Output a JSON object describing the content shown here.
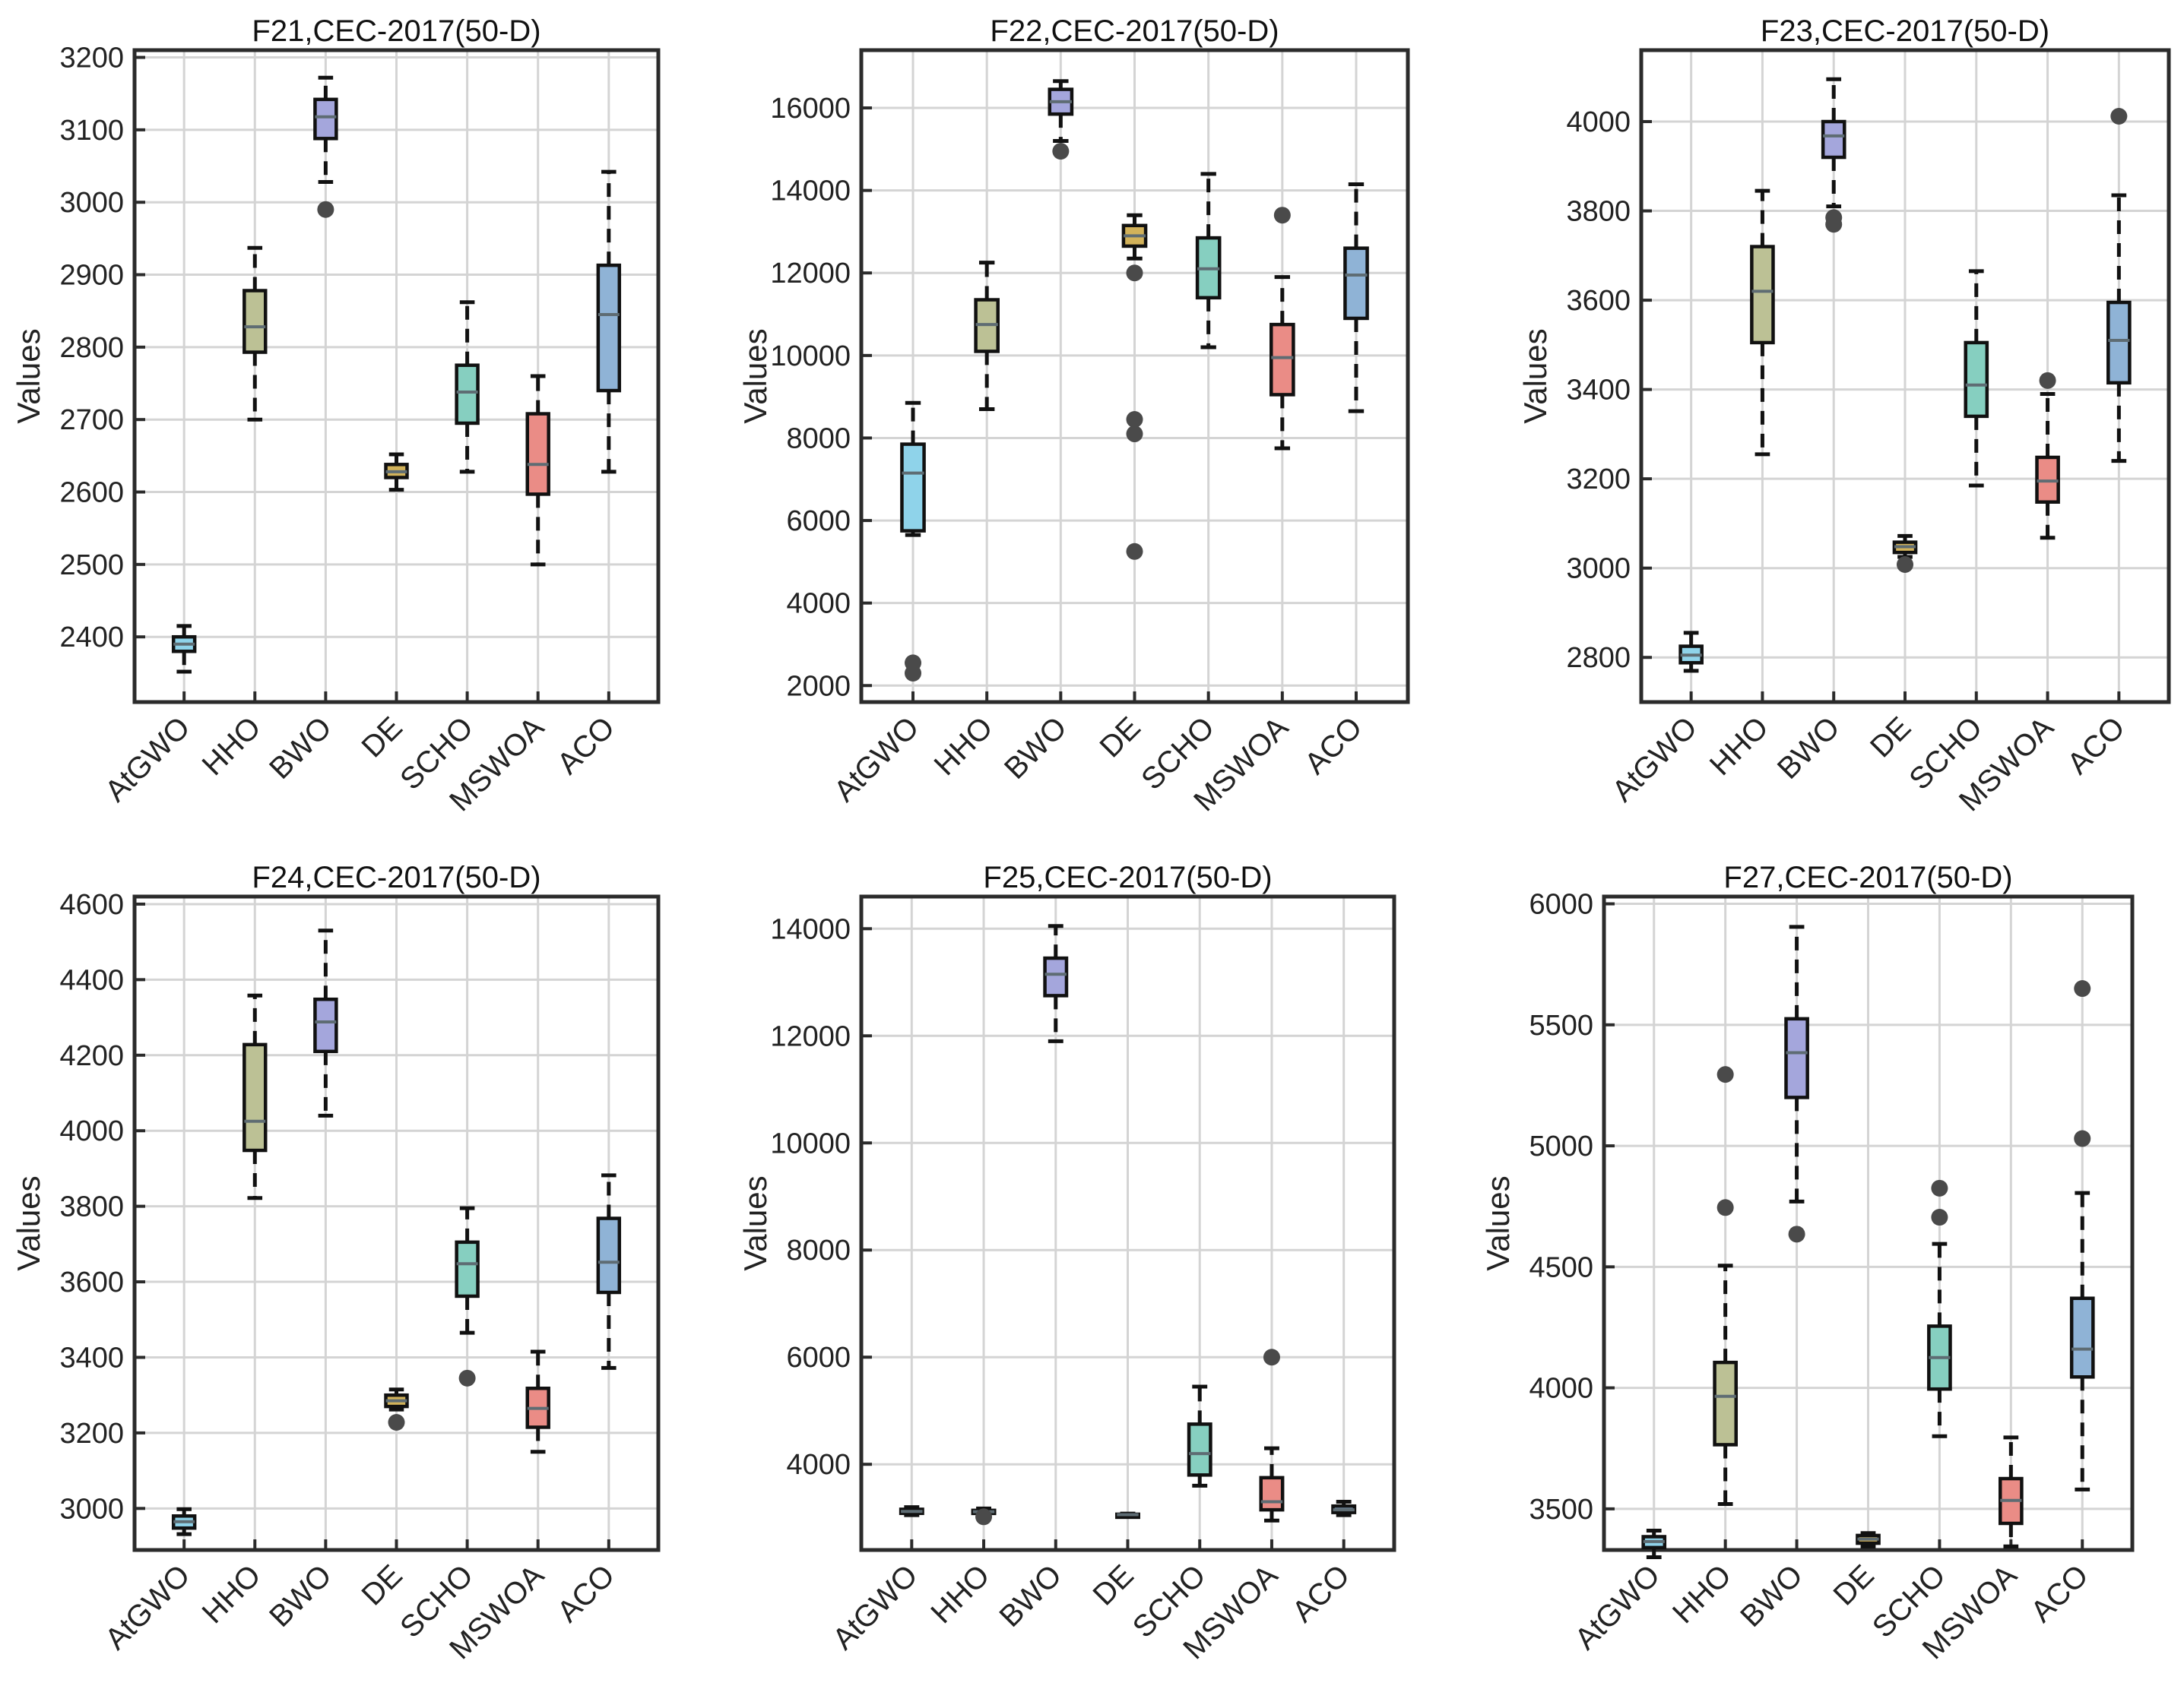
{
  "figure": {
    "colors": {
      "AtGWO": "#8fd3ea",
      "HHO": "#bcc195",
      "BWO": "#a4a6dc",
      "DE": "#d2b25a",
      "SCHO": "#86cfc0",
      "MSWOA": "#ea8c86",
      "ACO": "#8fb3d6"
    },
    "median_color": "#5e6c73",
    "outlier_color": "#4a4a4a"
  },
  "chart_data": [
    {
      "type": "box",
      "title": "F21,CEC-2017(50-D)",
      "ylabel": "Values",
      "ylim": [
        2310,
        3210
      ],
      "yticks": [
        "2400",
        "2500",
        "2600",
        "2700",
        "2800",
        "2900",
        "3000",
        "3100",
        "3200"
      ],
      "categories": [
        "AtGWO",
        "HHO",
        "BWO",
        "DE",
        "SCHO",
        "MSWOA",
        "ACO"
      ],
      "boxes": [
        {
          "name": "AtGWO",
          "whisker_low": 2352,
          "q1": 2380,
          "median": 2390,
          "q3": 2400,
          "whisker_high": 2415,
          "outliers": []
        },
        {
          "name": "HHO",
          "whisker_low": 2700,
          "q1": 2793,
          "median": 2828,
          "q3": 2878,
          "whisker_high": 2937,
          "outliers": []
        },
        {
          "name": "BWO",
          "whisker_low": 3028,
          "q1": 3088,
          "median": 3118,
          "q3": 3142,
          "whisker_high": 3172,
          "outliers": [
            2990
          ]
        },
        {
          "name": "DE",
          "whisker_low": 2603,
          "q1": 2620,
          "median": 2628,
          "q3": 2638,
          "whisker_high": 2652,
          "outliers": []
        },
        {
          "name": "SCHO",
          "whisker_low": 2628,
          "q1": 2695,
          "median": 2738,
          "q3": 2775,
          "whisker_high": 2862,
          "outliers": []
        },
        {
          "name": "MSWOA",
          "whisker_low": 2500,
          "q1": 2597,
          "median": 2638,
          "q3": 2708,
          "whisker_high": 2760,
          "outliers": []
        },
        {
          "name": "ACO",
          "whisker_low": 2628,
          "q1": 2740,
          "median": 2845,
          "q3": 2913,
          "whisker_high": 3042,
          "outliers": []
        }
      ]
    },
    {
      "type": "box",
      "title": "F22,CEC-2017(50-D)",
      "ylabel": "Values",
      "ylim": [
        1600,
        17400
      ],
      "yticks": [
        "2000",
        "4000",
        "6000",
        "8000",
        "10000",
        "12000",
        "14000",
        "16000"
      ],
      "categories": [
        "AtGWO",
        "HHO",
        "BWO",
        "DE",
        "SCHO",
        "MSWOA",
        "ACO"
      ],
      "boxes": [
        {
          "name": "AtGWO",
          "whisker_low": 5650,
          "q1": 5750,
          "median": 7150,
          "q3": 7850,
          "whisker_high": 8850,
          "outliers": [
            2300,
            2550
          ]
        },
        {
          "name": "HHO",
          "whisker_low": 8700,
          "q1": 10100,
          "median": 10750,
          "q3": 11350,
          "whisker_high": 12250,
          "outliers": []
        },
        {
          "name": "BWO",
          "whisker_low": 15200,
          "q1": 15850,
          "median": 16150,
          "q3": 16450,
          "whisker_high": 16650,
          "outliers": [
            14950
          ]
        },
        {
          "name": "DE",
          "whisker_low": 12350,
          "q1": 12650,
          "median": 12900,
          "q3": 13150,
          "whisker_high": 13400,
          "outliers": [
            12000,
            8450,
            8100,
            5250
          ]
        },
        {
          "name": "SCHO",
          "whisker_low": 10200,
          "q1": 11400,
          "median": 12100,
          "q3": 12850,
          "whisker_high": 14400,
          "outliers": []
        },
        {
          "name": "MSWOA",
          "whisker_low": 7750,
          "q1": 9050,
          "median": 9950,
          "q3": 10750,
          "whisker_high": 11900,
          "outliers": [
            13400
          ]
        },
        {
          "name": "ACO",
          "whisker_low": 8650,
          "q1": 10900,
          "median": 11950,
          "q3": 12600,
          "whisker_high": 14150,
          "outliers": []
        }
      ]
    },
    {
      "type": "box",
      "title": "F23,CEC-2017(50-D)",
      "ylabel": "Values",
      "ylim": [
        2700,
        4160
      ],
      "yticks": [
        "2800",
        "3000",
        "3200",
        "3400",
        "3600",
        "3800",
        "4000"
      ],
      "categories": [
        "AtGWO",
        "HHO",
        "BWO",
        "DE",
        "SCHO",
        "MSWOA",
        "ACO"
      ],
      "boxes": [
        {
          "name": "AtGWO",
          "whisker_low": 2770,
          "q1": 2788,
          "median": 2805,
          "q3": 2825,
          "whisker_high": 2855,
          "outliers": []
        },
        {
          "name": "HHO",
          "whisker_low": 3255,
          "q1": 3505,
          "median": 3620,
          "q3": 3720,
          "whisker_high": 3845,
          "outliers": []
        },
        {
          "name": "BWO",
          "whisker_low": 3810,
          "q1": 3920,
          "median": 3968,
          "q3": 4000,
          "whisker_high": 4095,
          "outliers": [
            3770,
            3785
          ]
        },
        {
          "name": "DE",
          "whisker_low": 3025,
          "q1": 3035,
          "median": 3048,
          "q3": 3058,
          "whisker_high": 3072,
          "outliers": [
            3008
          ]
        },
        {
          "name": "SCHO",
          "whisker_low": 3185,
          "q1": 3340,
          "median": 3410,
          "q3": 3505,
          "whisker_high": 3665,
          "outliers": []
        },
        {
          "name": "MSWOA",
          "whisker_low": 3068,
          "q1": 3148,
          "median": 3195,
          "q3": 3248,
          "whisker_high": 3390,
          "outliers": [
            3420
          ]
        },
        {
          "name": "ACO",
          "whisker_low": 3240,
          "q1": 3415,
          "median": 3510,
          "q3": 3595,
          "whisker_high": 3835,
          "outliers": [
            4012
          ]
        }
      ]
    },
    {
      "type": "box",
      "title": "F24,CEC-2017(50-D)",
      "ylabel": "Values",
      "ylim": [
        2890,
        4620
      ],
      "yticks": [
        "3000",
        "3200",
        "3400",
        "3600",
        "3800",
        "4000",
        "4200",
        "4400",
        "4600"
      ],
      "categories": [
        "AtGWO",
        "HHO",
        "BWO",
        "DE",
        "SCHO",
        "MSWOA",
        "ACO"
      ],
      "boxes": [
        {
          "name": "AtGWO",
          "whisker_low": 2932,
          "q1": 2948,
          "median": 2965,
          "q3": 2980,
          "whisker_high": 2998,
          "outliers": []
        },
        {
          "name": "HHO",
          "whisker_low": 3822,
          "q1": 3948,
          "median": 4025,
          "q3": 4228,
          "whisker_high": 4358,
          "outliers": []
        },
        {
          "name": "BWO",
          "whisker_low": 4040,
          "q1": 4210,
          "median": 4288,
          "q3": 4348,
          "whisker_high": 4530,
          "outliers": []
        },
        {
          "name": "DE",
          "whisker_low": 3262,
          "q1": 3270,
          "median": 3285,
          "q3": 3300,
          "whisker_high": 3315,
          "outliers": [
            3228
          ]
        },
        {
          "name": "SCHO",
          "whisker_low": 3465,
          "q1": 3562,
          "median": 3648,
          "q3": 3705,
          "whisker_high": 3795,
          "outliers": [
            3345
          ]
        },
        {
          "name": "MSWOA",
          "whisker_low": 3150,
          "q1": 3215,
          "median": 3265,
          "q3": 3318,
          "whisker_high": 3415,
          "outliers": []
        },
        {
          "name": "ACO",
          "whisker_low": 3372,
          "q1": 3572,
          "median": 3652,
          "q3": 3768,
          "whisker_high": 3882,
          "outliers": []
        }
      ]
    },
    {
      "type": "box",
      "title": "F25,CEC-2017(50-D)",
      "ylabel": "Values",
      "ylim": [
        2400,
        14600
      ],
      "yticks": [
        "4000",
        "6000",
        "8000",
        "10000",
        "12000",
        "14000"
      ],
      "categories": [
        "AtGWO",
        "HHO",
        "BWO",
        "DE",
        "SCHO",
        "MSWOA",
        "ACO"
      ],
      "boxes": [
        {
          "name": "AtGWO",
          "whisker_low": 3050,
          "q1": 3085,
          "median": 3120,
          "q3": 3160,
          "whisker_high": 3200,
          "outliers": []
        },
        {
          "name": "HHO",
          "whisker_low": 3060,
          "q1": 3090,
          "median": 3115,
          "q3": 3140,
          "whisker_high": 3175,
          "outliers": [
            3020
          ]
        },
        {
          "name": "BWO",
          "whisker_low": 11900,
          "q1": 12750,
          "median": 13150,
          "q3": 13450,
          "whisker_high": 14050,
          "outliers": []
        },
        {
          "name": "DE",
          "whisker_low": 3040,
          "q1": 3050,
          "median": 3060,
          "q3": 3068,
          "whisker_high": 3080,
          "outliers": []
        },
        {
          "name": "SCHO",
          "whisker_low": 3600,
          "q1": 3800,
          "median": 4200,
          "q3": 4750,
          "whisker_high": 5450,
          "outliers": []
        },
        {
          "name": "MSWOA",
          "whisker_low": 2950,
          "q1": 3150,
          "median": 3300,
          "q3": 3750,
          "whisker_high": 4300,
          "outliers": [
            6000
          ]
        },
        {
          "name": "ACO",
          "whisker_low": 3050,
          "q1": 3100,
          "median": 3150,
          "q3": 3220,
          "whisker_high": 3300,
          "outliers": []
        }
      ]
    },
    {
      "type": "box",
      "title": "F27,CEC-2017(50-D)",
      "ylabel": "Values",
      "ylim": [
        3330,
        6030
      ],
      "yticks": [
        "3500",
        "4000",
        "4500",
        "5000",
        "5500",
        "6000"
      ],
      "categories": [
        "AtGWO",
        "HHO",
        "BWO",
        "DE",
        "SCHO",
        "MSWOA",
        "ACO"
      ],
      "boxes": [
        {
          "name": "AtGWO",
          "whisker_low": 3300,
          "q1": 3340,
          "median": 3365,
          "q3": 3385,
          "whisker_high": 3410,
          "outliers": []
        },
        {
          "name": "HHO",
          "whisker_low": 3520,
          "q1": 3765,
          "median": 3965,
          "q3": 4105,
          "whisker_high": 4505,
          "outliers": [
            4745,
            5295
          ]
        },
        {
          "name": "BWO",
          "whisker_low": 4770,
          "q1": 5200,
          "median": 5385,
          "q3": 5525,
          "whisker_high": 5905,
          "outliers": [
            4635
          ]
        },
        {
          "name": "DE",
          "whisker_low": 3345,
          "q1": 3358,
          "median": 3375,
          "q3": 3390,
          "whisker_high": 3400,
          "outliers": []
        },
        {
          "name": "SCHO",
          "whisker_low": 3800,
          "q1": 3995,
          "median": 4125,
          "q3": 4255,
          "whisker_high": 4595,
          "outliers": [
            4705,
            4825
          ]
        },
        {
          "name": "MSWOA",
          "whisker_low": 3345,
          "q1": 3440,
          "median": 3535,
          "q3": 3625,
          "whisker_high": 3795,
          "outliers": []
        },
        {
          "name": "ACO",
          "whisker_low": 3580,
          "q1": 4045,
          "median": 4160,
          "q3": 4370,
          "whisker_high": 4805,
          "outliers": [
            5030,
            5650
          ]
        }
      ]
    }
  ]
}
